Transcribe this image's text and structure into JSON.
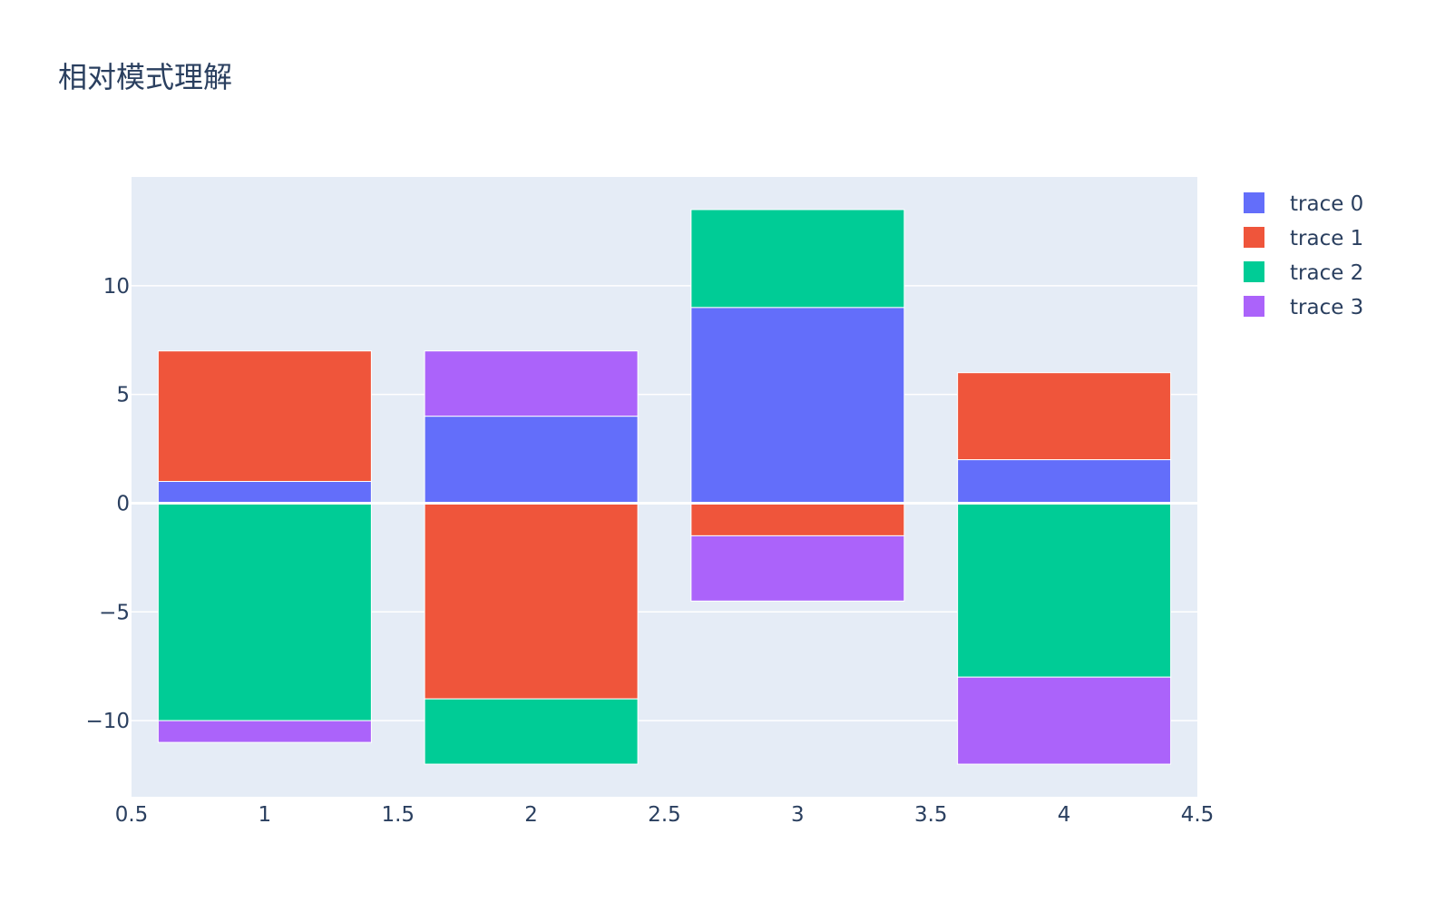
{
  "chart_data": {
    "type": "bar",
    "barmode": "relative",
    "title": "相对模式理解",
    "x": [
      1,
      2,
      3,
      4
    ],
    "series": [
      {
        "name": "trace 0",
        "color": "#636efa",
        "values": [
          1,
          4,
          9,
          2
        ]
      },
      {
        "name": "trace 1",
        "color": "#ef553b",
        "values": [
          6,
          -9,
          -1.5,
          4
        ]
      },
      {
        "name": "trace 2",
        "color": "#00cc96",
        "values": [
          -10,
          -3,
          4.5,
          -8
        ]
      },
      {
        "name": "trace 3",
        "color": "#ab63fa",
        "values": [
          -1,
          3,
          -3,
          -4
        ]
      }
    ],
    "xlim": [
      0.5,
      4.5
    ],
    "ylim": [
      -13.5,
      15
    ],
    "x_ticks": [
      "0.5",
      "1",
      "1.5",
      "2",
      "2.5",
      "3",
      "3.5",
      "4",
      "4.5"
    ],
    "y_ticks": [
      "−10",
      "−5",
      "0",
      "5",
      "10"
    ],
    "grid": true,
    "legend_position": "top-right",
    "plot_background": "#e5ecf6"
  }
}
